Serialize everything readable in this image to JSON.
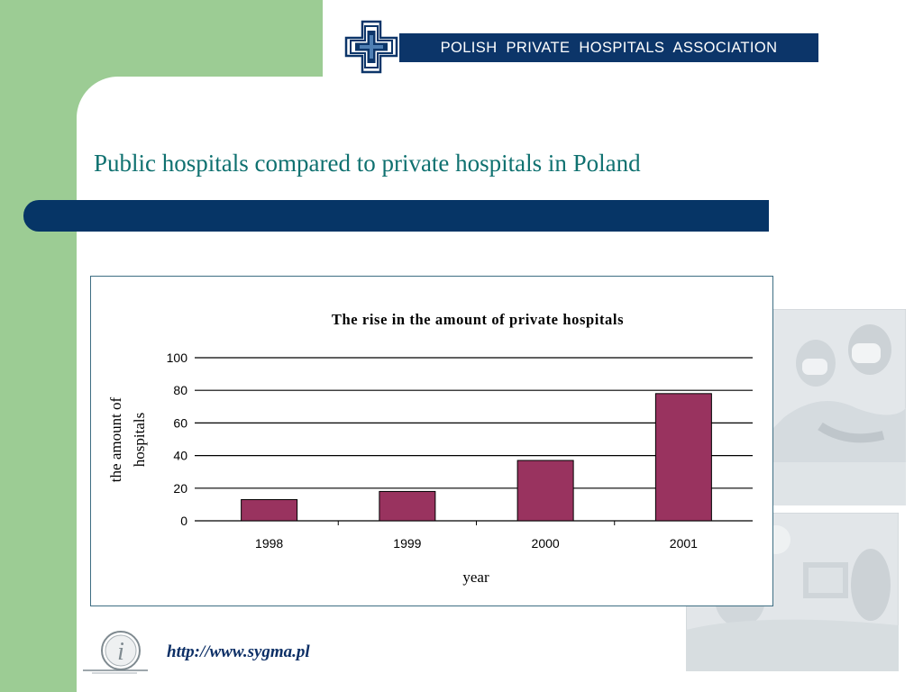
{
  "header": {
    "banner_text": "POLISH  PRIVATE  HOSPITALS  ASSOCIATION",
    "logo_icon": "medical-cross-logo"
  },
  "slide": {
    "title": "Public hospitals compared to private hospitals in Poland"
  },
  "footer": {
    "link_text": "http://www.sygma.pl",
    "info_icon": "info-icon"
  },
  "colors": {
    "green_band": "#9ccc94",
    "navy": "#063566",
    "title_teal": "#0f7170",
    "bar_fill": "#99335f"
  },
  "chart_data": {
    "type": "bar",
    "title": "The rise in the amount of private hospitals",
    "xlabel": "year",
    "ylabel": "the amount of hospitals",
    "categories": [
      "1998",
      "1999",
      "2000",
      "2001"
    ],
    "values": [
      13,
      18,
      37,
      78
    ],
    "ylim": [
      0,
      100
    ],
    "yticks": [
      "0",
      "20",
      "40",
      "60",
      "80",
      "100"
    ],
    "grid": true,
    "legend": "none",
    "bar_color": "#99335f"
  }
}
